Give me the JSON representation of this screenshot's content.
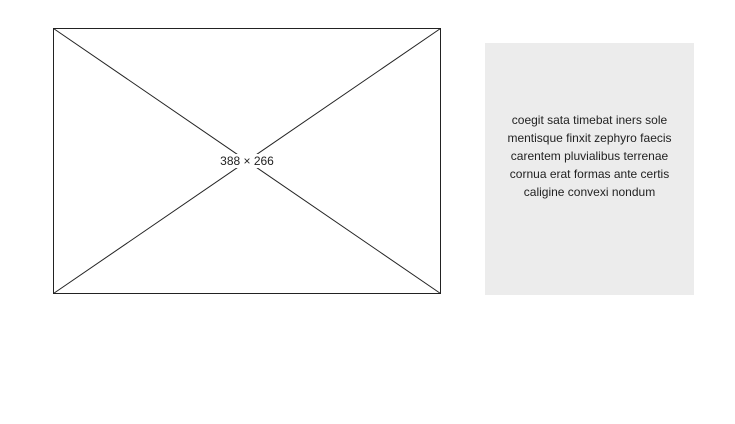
{
  "image_placeholder": {
    "label": "388 × 266"
  },
  "text_panel": {
    "text": "coegit sata timebat iners sole mentisque finxit zephyro faecis carentem pluvialibus terrenae cornua erat formas ante certis caligine convexi nondum"
  },
  "colors": {
    "background": "#ffffff",
    "panel_background": "#ececec",
    "outline": "#222222"
  }
}
